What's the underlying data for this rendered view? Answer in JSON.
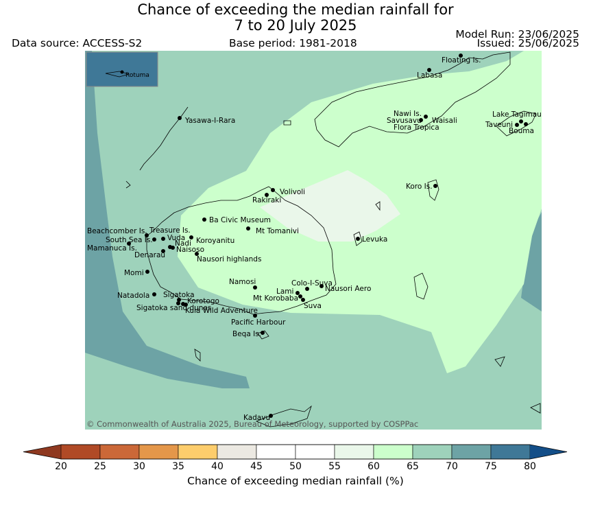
{
  "title": {
    "line1": "Chance of exceeding the median rainfall for",
    "line2": "7 to 20 July 2025"
  },
  "header": {
    "data_source": "Data source: ACCESS-S2",
    "base_period": "Base period: 1981-2018",
    "model_run": "Model Run: 23/06/2025",
    "issued": "Issued: 25/06/2025"
  },
  "map": {
    "copyright": "© Commonwealth of Australia 2025, Bureau of Meteorology, supported by COSPPac",
    "inset_label": "Rotuma",
    "places": [
      "Floating Is.",
      "Labasa",
      "Yasawa-I-Rara",
      "Nawi Is.",
      "Savusavu",
      "Waisali",
      "Flora Tropica",
      "Lake Tagimaucia",
      "Taveuni",
      "Bouma",
      "Koro Is.",
      "Volivoli",
      "Rakiraki",
      "Beachcomber Is.",
      "Treasure Is.",
      "Ba Civic Museum",
      "Mt Tomanivi",
      "South Sea Is.",
      "Vuda",
      "Koroyanitu",
      "Nadi",
      "Mamanuca Is.",
      "Naisoso",
      "Denarau",
      "Nausori highlands",
      "Levuka",
      "Momi",
      "Namosi",
      "Colo-I-Suva",
      "Lami",
      "Nausori Aero",
      "Natadola",
      "Sigatoka",
      "Korotogo",
      "Mt Korobaba",
      "Suva",
      "Sigatoka sand dunes",
      "Kula Wild Adventure",
      "Pacific Harbour",
      "Beqa Is.",
      "Kadavu"
    ]
  },
  "colorbar": {
    "label": "Chance of exceeding median rainfall (%)",
    "ticks": [
      "20",
      "25",
      "30",
      "35",
      "40",
      "45",
      "50",
      "55",
      "60",
      "65",
      "70",
      "75",
      "80"
    ],
    "colors": [
      "#b04a26",
      "#cb6838",
      "#e4974a",
      "#fdcd6c",
      "#ece9e2",
      "#ffffff",
      "#ffffff",
      "#eaf7ea",
      "#ccffcc",
      "#9ed2bb",
      "#6da3a5",
      "#3f7897"
    ],
    "under_color": "#8f3920",
    "over_color": "#134e88"
  }
}
